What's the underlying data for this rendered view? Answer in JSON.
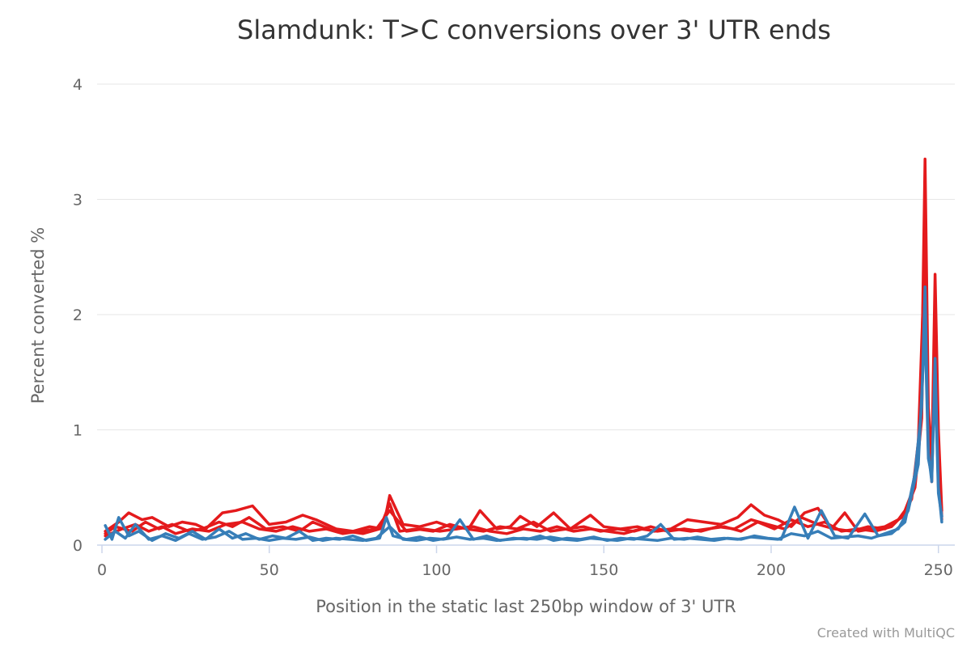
{
  "chart_data": {
    "type": "line",
    "title": "Slamdunk: T>C conversions over 3' UTR ends",
    "xlabel": "Position in the static last 250bp window of 3' UTR",
    "ylabel": "Percent converted %",
    "xlim": [
      0,
      252
    ],
    "ylim": [
      0,
      4
    ],
    "xticks": [
      0,
      50,
      100,
      150,
      200,
      250
    ],
    "yticks": [
      0,
      1,
      2,
      3,
      4
    ],
    "grid": true,
    "legend": "none",
    "colors": {
      "red": "#e41a1c",
      "blue": "#377eb8",
      "grid": "#e6e6e6",
      "axis": "#ccd6eb"
    },
    "series": [
      {
        "color": "#e41a1c",
        "x": [
          1,
          5,
          8,
          12,
          15,
          20,
          24,
          28,
          31,
          36,
          40,
          45,
          50,
          55,
          60,
          64,
          70,
          75,
          80,
          84,
          86,
          90,
          95,
          100,
          106,
          110,
          113,
          118,
          122,
          125,
          130,
          135,
          140,
          146,
          150,
          155,
          160,
          165,
          170,
          175,
          180,
          185,
          190,
          194,
          198,
          202,
          206,
          210,
          214,
          218,
          222,
          226,
          230,
          234,
          238,
          240,
          242,
          244,
          245,
          246,
          247,
          248,
          249,
          250,
          251
        ],
        "values": [
          0.12,
          0.2,
          0.28,
          0.22,
          0.24,
          0.16,
          0.2,
          0.18,
          0.14,
          0.28,
          0.3,
          0.34,
          0.18,
          0.2,
          0.26,
          0.22,
          0.14,
          0.12,
          0.16,
          0.14,
          0.43,
          0.18,
          0.16,
          0.2,
          0.14,
          0.16,
          0.3,
          0.14,
          0.16,
          0.25,
          0.16,
          0.28,
          0.14,
          0.26,
          0.16,
          0.14,
          0.16,
          0.12,
          0.14,
          0.22,
          0.2,
          0.18,
          0.24,
          0.35,
          0.26,
          0.22,
          0.16,
          0.28,
          0.32,
          0.14,
          0.28,
          0.12,
          0.14,
          0.16,
          0.22,
          0.3,
          0.45,
          0.8,
          1.5,
          3.35,
          1.2,
          0.7,
          2.35,
          1.0,
          0.3
        ]
      },
      {
        "color": "#e41a1c",
        "x": [
          1,
          6,
          10,
          14,
          18,
          22,
          27,
          32,
          37,
          42,
          47,
          52,
          57,
          62,
          67,
          72,
          77,
          82,
          86,
          91,
          96,
          101,
          106,
          111,
          116,
          121,
          126,
          131,
          136,
          141,
          146,
          151,
          156,
          161,
          166,
          171,
          176,
          181,
          186,
          191,
          196,
          201,
          206,
          211,
          216,
          221,
          226,
          231,
          236,
          240,
          243,
          245,
          246,
          247,
          248,
          249,
          250,
          251
        ],
        "values": [
          0.08,
          0.14,
          0.18,
          0.12,
          0.16,
          0.1,
          0.14,
          0.12,
          0.18,
          0.2,
          0.14,
          0.12,
          0.16,
          0.12,
          0.14,
          0.1,
          0.12,
          0.14,
          0.3,
          0.12,
          0.14,
          0.12,
          0.14,
          0.16,
          0.12,
          0.1,
          0.14,
          0.12,
          0.16,
          0.12,
          0.14,
          0.12,
          0.1,
          0.14,
          0.12,
          0.14,
          0.12,
          0.14,
          0.16,
          0.12,
          0.2,
          0.14,
          0.22,
          0.16,
          0.2,
          0.12,
          0.14,
          0.12,
          0.16,
          0.28,
          0.5,
          1.1,
          2.8,
          0.9,
          0.6,
          2.0,
          0.8,
          0.25
        ]
      },
      {
        "color": "#e41a1c",
        "x": [
          1,
          4,
          9,
          13,
          17,
          21,
          26,
          30,
          35,
          39,
          44,
          49,
          54,
          59,
          63,
          68,
          73,
          78,
          83,
          86,
          89,
          94,
          99,
          104,
          109,
          114,
          119,
          124,
          129,
          134,
          139,
          144,
          149,
          154,
          159,
          164,
          169,
          174,
          179,
          184,
          189,
          194,
          199,
          204,
          209,
          214,
          219,
          224,
          229,
          234,
          239,
          242,
          244,
          246,
          247,
          248,
          249,
          250,
          251
        ],
        "values": [
          0.1,
          0.16,
          0.12,
          0.2,
          0.14,
          0.18,
          0.12,
          0.14,
          0.2,
          0.16,
          0.24,
          0.14,
          0.16,
          0.12,
          0.2,
          0.14,
          0.12,
          0.1,
          0.14,
          0.36,
          0.12,
          0.14,
          0.12,
          0.18,
          0.14,
          0.12,
          0.16,
          0.14,
          0.2,
          0.12,
          0.14,
          0.16,
          0.12,
          0.14,
          0.12,
          0.16,
          0.12,
          0.14,
          0.12,
          0.16,
          0.14,
          0.22,
          0.18,
          0.14,
          0.24,
          0.18,
          0.14,
          0.12,
          0.16,
          0.14,
          0.24,
          0.4,
          0.9,
          2.6,
          1.0,
          0.55,
          1.8,
          0.7,
          0.22
        ]
      },
      {
        "color": "#377eb8",
        "x": [
          1,
          3,
          5,
          8,
          11,
          15,
          19,
          23,
          27,
          31,
          35,
          39,
          43,
          47,
          51,
          55,
          59,
          63,
          67,
          71,
          75,
          79,
          83,
          85,
          87,
          91,
          95,
          99,
          103,
          107,
          111,
          115,
          119,
          123,
          127,
          131,
          135,
          139,
          143,
          147,
          151,
          155,
          159,
          163,
          167,
          171,
          175,
          179,
          183,
          187,
          191,
          195,
          199,
          203,
          207,
          211,
          215,
          219,
          223,
          228,
          232,
          236,
          240,
          243,
          245,
          246,
          247,
          248,
          249,
          250,
          251
        ],
        "values": [
          0.17,
          0.05,
          0.24,
          0.08,
          0.12,
          0.04,
          0.1,
          0.06,
          0.12,
          0.05,
          0.14,
          0.06,
          0.1,
          0.05,
          0.08,
          0.06,
          0.12,
          0.04,
          0.06,
          0.05,
          0.08,
          0.04,
          0.06,
          0.24,
          0.08,
          0.05,
          0.07,
          0.04,
          0.06,
          0.22,
          0.05,
          0.08,
          0.04,
          0.06,
          0.05,
          0.08,
          0.04,
          0.06,
          0.05,
          0.07,
          0.04,
          0.06,
          0.05,
          0.08,
          0.18,
          0.05,
          0.06,
          0.05,
          0.04,
          0.06,
          0.05,
          0.08,
          0.06,
          0.05,
          0.33,
          0.06,
          0.3,
          0.08,
          0.06,
          0.27,
          0.08,
          0.1,
          0.2,
          0.62,
          1.2,
          2.24,
          0.8,
          0.55,
          1.62,
          0.5,
          0.2
        ]
      },
      {
        "color": "#377eb8",
        "x": [
          1,
          4,
          7,
          10,
          14,
          18,
          22,
          26,
          30,
          34,
          38,
          42,
          46,
          50,
          54,
          58,
          62,
          66,
          70,
          74,
          78,
          82,
          86,
          90,
          94,
          98,
          102,
          106,
          110,
          114,
          118,
          122,
          126,
          130,
          134,
          138,
          142,
          146,
          150,
          154,
          158,
          162,
          166,
          170,
          174,
          178,
          182,
          186,
          190,
          194,
          198,
          202,
          206,
          210,
          214,
          218,
          222,
          226,
          230,
          234,
          238,
          241,
          244,
          246,
          247,
          248,
          249,
          250,
          251
        ],
        "values": [
          0.05,
          0.12,
          0.06,
          0.18,
          0.05,
          0.08,
          0.04,
          0.1,
          0.05,
          0.07,
          0.12,
          0.05,
          0.06,
          0.04,
          0.06,
          0.05,
          0.07,
          0.04,
          0.06,
          0.05,
          0.04,
          0.06,
          0.16,
          0.05,
          0.04,
          0.06,
          0.05,
          0.07,
          0.05,
          0.06,
          0.04,
          0.05,
          0.06,
          0.05,
          0.07,
          0.05,
          0.04,
          0.06,
          0.05,
          0.04,
          0.06,
          0.05,
          0.04,
          0.06,
          0.05,
          0.07,
          0.05,
          0.06,
          0.05,
          0.07,
          0.06,
          0.05,
          0.1,
          0.08,
          0.12,
          0.06,
          0.07,
          0.08,
          0.06,
          0.1,
          0.14,
          0.3,
          0.7,
          1.9,
          0.75,
          0.6,
          1.45,
          0.45,
          0.25
        ]
      }
    ]
  },
  "credits": "Created with MultiQC"
}
